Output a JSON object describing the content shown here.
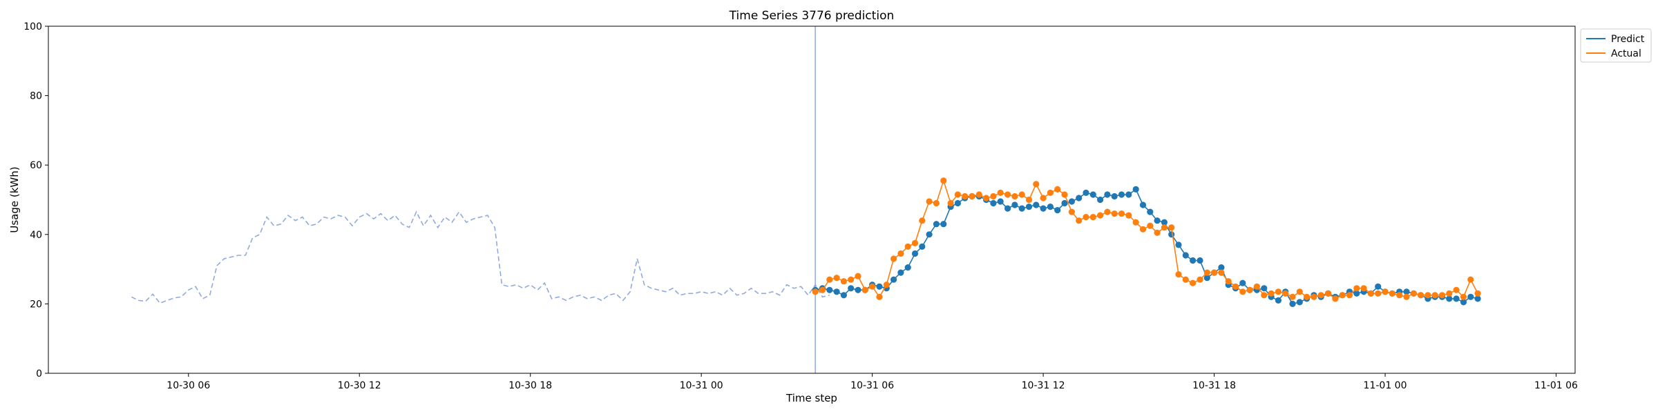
{
  "chart_data": {
    "type": "line",
    "title": "Time Series 3776 prediction",
    "xlabel": "Time step",
    "ylabel": "Usage (kWh)",
    "ylim": [
      0,
      100
    ],
    "yticks": [
      0,
      20,
      40,
      60,
      80,
      100
    ],
    "xlim": [
      "10-30 01:05",
      "11-01 06:40"
    ],
    "xticks": [
      {
        "t": "10-30 06:00",
        "label": "10-30 06"
      },
      {
        "t": "10-30 12:00",
        "label": "10-30 12"
      },
      {
        "t": "10-30 18:00",
        "label": "10-30 18"
      },
      {
        "t": "10-31 00:00",
        "label": "10-31 00"
      },
      {
        "t": "10-31 06:00",
        "label": "10-31 06"
      },
      {
        "t": "10-31 12:00",
        "label": "10-31 12"
      },
      {
        "t": "10-31 18:00",
        "label": "10-31 18"
      },
      {
        "t": "11-01 00:00",
        "label": "11-01 00"
      },
      {
        "t": "11-01 06:00",
        "label": "11-01 06"
      }
    ],
    "grid": false,
    "legend_position": "top-right",
    "split_time": "10-31 04:00",
    "history": {
      "x_start": "10-30 04:00",
      "x_step_minutes": 15,
      "values": [
        22.0,
        21.0,
        20.8,
        22.8,
        20.2,
        21.0,
        21.7,
        22.0,
        24.0,
        25.0,
        21.5,
        22.5,
        31.0,
        33.0,
        33.5,
        34.0,
        34.0,
        39.0,
        40.0,
        45.0,
        42.5,
        43.0,
        45.5,
        44.0,
        45.0,
        42.5,
        43.0,
        45.0,
        44.5,
        45.5,
        45.0,
        42.5,
        45.0,
        46.0,
        44.5,
        46.0,
        44.0,
        45.5,
        43.0,
        42.0,
        46.5,
        42.5,
        45.5,
        42.0,
        45.0,
        43.5,
        46.5,
        43.5,
        44.5,
        45.0,
        45.5,
        42.0,
        25.5,
        25.0,
        25.5,
        24.5,
        25.5,
        24.0,
        26.0,
        21.5,
        22.0,
        21.0,
        22.0,
        22.5,
        21.5,
        22.0,
        21.0,
        22.5,
        23.0,
        21.0,
        23.5,
        33.0,
        25.5,
        24.5,
        24.0,
        23.5,
        24.5,
        22.5,
        23.0,
        23.0,
        23.5,
        23.0,
        23.5,
        22.5,
        24.5,
        22.5,
        23.0,
        24.5,
        23.0,
        23.0,
        23.5,
        22.5,
        25.5,
        24.5,
        25.0,
        22.5,
        25.5,
        22.0,
        22.5
      ]
    },
    "forecast": {
      "x_start": "10-31 04:00",
      "x_step_minutes": 15,
      "series": [
        {
          "name": "Predict",
          "color": "#1f77b4",
          "values": [
            24.0,
            24.5,
            24.0,
            23.5,
            22.5,
            24.5,
            24.0,
            24.0,
            25.5,
            25.0,
            24.5,
            27.0,
            29.0,
            30.5,
            34.5,
            36.5,
            40.0,
            43.0,
            43.0,
            48.0,
            49.0,
            50.5,
            51.0,
            51.0,
            50.0,
            49.0,
            49.5,
            47.5,
            48.5,
            47.5,
            48.0,
            48.5,
            47.5,
            48.0,
            47.0,
            49.0,
            49.5,
            50.5,
            52.0,
            51.5,
            50.0,
            51.5,
            51.0,
            51.5,
            51.5,
            53.0,
            48.5,
            46.5,
            44.0,
            43.5,
            40.0,
            37.0,
            34.0,
            32.5,
            32.5,
            27.5,
            29.0,
            30.5,
            25.5,
            24.5,
            26.0,
            24.0,
            24.0,
            24.5,
            22.0,
            21.0,
            23.5,
            20.0,
            20.5,
            21.5,
            22.5,
            22.0,
            23.0,
            22.0,
            22.5,
            23.5,
            23.0,
            23.5,
            23.0,
            25.0,
            23.5,
            23.0,
            23.5,
            23.5,
            23.0,
            22.5,
            21.5,
            22.0,
            22.0,
            21.5,
            21.5,
            20.5,
            22.0,
            21.5
          ]
        },
        {
          "name": "Actual",
          "color": "#ff7f0e",
          "values": [
            23.5,
            24.0,
            27.0,
            27.5,
            26.5,
            27.0,
            28.0,
            24.0,
            25.0,
            22.0,
            25.5,
            33.0,
            34.5,
            36.5,
            37.5,
            44.0,
            49.5,
            49.0,
            55.5,
            49.0,
            51.5,
            51.0,
            51.0,
            51.5,
            50.5,
            51.0,
            52.0,
            51.5,
            51.0,
            51.5,
            50.0,
            54.5,
            50.5,
            52.0,
            53.0,
            51.5,
            46.5,
            44.0,
            45.0,
            45.0,
            45.5,
            46.5,
            46.0,
            46.0,
            45.5,
            43.5,
            41.5,
            42.5,
            40.5,
            42.0,
            42.0,
            28.5,
            27.0,
            26.0,
            27.0,
            29.0,
            29.0,
            29.0,
            26.5,
            25.0,
            23.5,
            24.0,
            25.0,
            22.5,
            23.0,
            23.5,
            23.0,
            22.0,
            23.5,
            22.0,
            22.0,
            22.5,
            23.0,
            21.5,
            22.5,
            22.5,
            24.5,
            24.5,
            23.0,
            23.0,
            23.5,
            23.0,
            22.5,
            22.0,
            23.0,
            22.5,
            22.5,
            22.5,
            22.5,
            23.0,
            24.0,
            22.0,
            27.0,
            23.0
          ]
        }
      ]
    },
    "history_color": "#8faadc",
    "split_line_color": "#8faadc"
  }
}
